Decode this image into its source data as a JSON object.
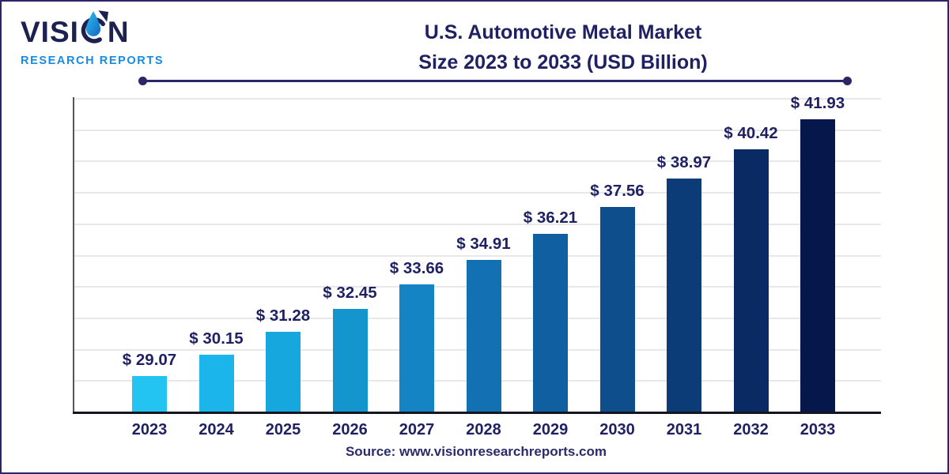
{
  "logo": {
    "brand_part1": "VISI",
    "brand_part2": "N",
    "subtitle": "RESEARCH REPORTS"
  },
  "header": {
    "title_line1": "U.S. Automotive Metal Market",
    "title_line2": "Size 2023 to 2033 (USD Billion)"
  },
  "footer": {
    "source": "Source: www.visionresearchreports.com"
  },
  "chart_data": {
    "type": "bar",
    "title": "U.S. Automotive Metal Market Size 2023 to 2033 (USD Billion)",
    "unit": "USD Billion",
    "categories": [
      "2023",
      "2024",
      "2025",
      "2026",
      "2027",
      "2028",
      "2029",
      "2030",
      "2031",
      "2032",
      "2033"
    ],
    "values": [
      29.07,
      30.15,
      31.28,
      32.45,
      33.66,
      34.91,
      36.21,
      37.56,
      38.97,
      40.42,
      41.93
    ],
    "value_prefix": "$ ",
    "xlabel": "",
    "ylabel": "",
    "ylim": [
      27.3,
      43
    ],
    "grid": "horizontal",
    "legend": "none",
    "bar_colors": [
      "#24C4F2",
      "#1CB5EB",
      "#17A7DF",
      "#1495CE",
      "#1584C4",
      "#1370B3",
      "#0F5FA1",
      "#0F4E8D",
      "#0C3C78",
      "#092A62",
      "#06174C"
    ]
  },
  "colors": {
    "title_navy": "#1F2163",
    "logo_navy": "#1C2150",
    "logo_blue": "#188AE2",
    "border_navy": "#2A2668",
    "gridline_gray": "#E8E8EB",
    "axis_dark": "#15151D"
  }
}
